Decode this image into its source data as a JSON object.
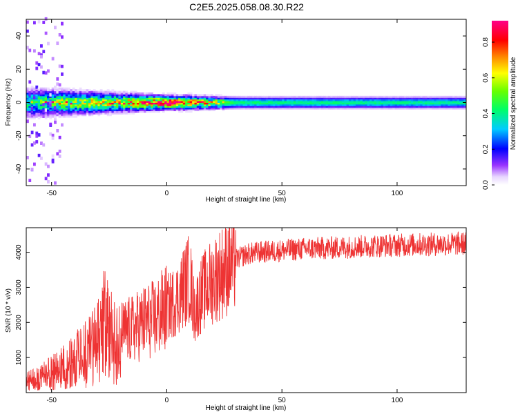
{
  "title": "C2E5.2025.058.08.30.R22",
  "chart_data": [
    {
      "type": "heatmap",
      "xlabel": "Height of straight line (km)",
      "ylabel": "Frequency (Hz)",
      "xlim": [
        -61,
        130
      ],
      "ylim": [
        -50,
        50
      ],
      "xticks": [
        -50,
        0,
        50,
        100
      ],
      "yticks": [
        -40,
        -20,
        0,
        20,
        40
      ],
      "colorbar": {
        "label": "Normalized spectral amplitude",
        "range": [
          0.0,
          0.92
        ],
        "ticks": [
          0.0,
          0.2,
          0.4,
          0.6,
          0.8
        ]
      },
      "band": {
        "center_hz": 0,
        "description_points": [
          {
            "x": -60,
            "halfwidth_hz": 6,
            "core_amp": 0.4
          },
          {
            "x": -40,
            "halfwidth_hz": 5,
            "core_amp": 0.55
          },
          {
            "x": -20,
            "halfwidth_hz": 4,
            "core_amp": 0.6
          },
          {
            "x": 0,
            "halfwidth_hz": 3,
            "core_amp": 0.85
          },
          {
            "x": 10,
            "halfwidth_hz": 3,
            "core_amp": 0.7
          },
          {
            "x": 30,
            "halfwidth_hz": 2.5,
            "core_amp": 0.42
          },
          {
            "x": 130,
            "halfwidth_hz": 2.5,
            "core_amp": 0.4
          }
        ]
      },
      "grid": false
    },
    {
      "type": "line",
      "xlabel": "Height of straight line (km)",
      "ylabel": "SNR (10 * v/v)",
      "xlim": [
        -61,
        130
      ],
      "ylim": [
        0,
        4700
      ],
      "xticks": [
        -50,
        0,
        50,
        100
      ],
      "yticks": [
        1000,
        2000,
        3000,
        4000
      ],
      "series": [
        {
          "color": "#ee3333",
          "x": [
            -60,
            -55,
            -50,
            -45,
            -40,
            -35,
            -30,
            -27,
            -25,
            -20,
            -15,
            -10,
            -5,
            0,
            5,
            8,
            10,
            12,
            15,
            20,
            25,
            30,
            35,
            40,
            50,
            60,
            70,
            80,
            90,
            100,
            110,
            120,
            130
          ],
          "y": [
            400,
            500,
            700,
            900,
            1100,
            1350,
            1700,
            2400,
            1900,
            1700,
            1800,
            2000,
            2100,
            2400,
            2700,
            3100,
            3300,
            2300,
            2800,
            3200,
            3500,
            3800,
            3950,
            4000,
            4050,
            4100,
            4120,
            4150,
            4180,
            4200,
            4220,
            4230,
            4250
          ]
        }
      ],
      "grid": false
    }
  ]
}
